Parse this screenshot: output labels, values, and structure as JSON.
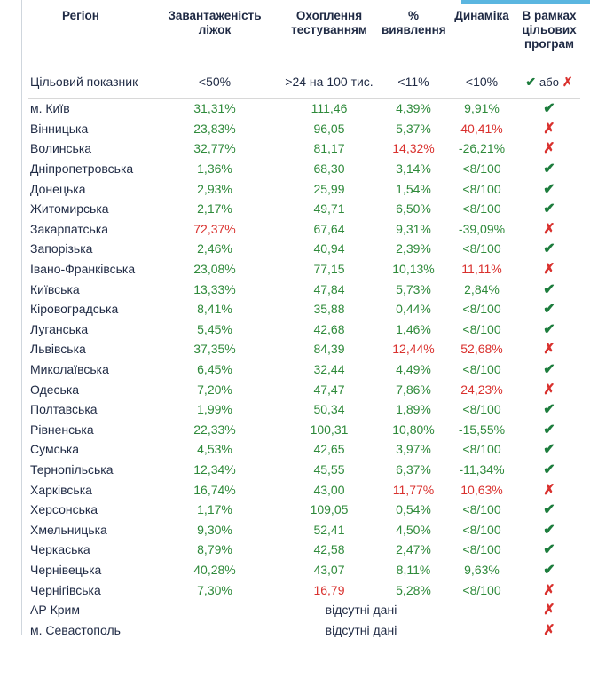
{
  "headers": [
    "Регіон",
    "Завантаженість ліжок",
    "Охоплення тестуванням",
    "% виявлення",
    "Динаміка",
    "В рамках цільових програм"
  ],
  "target": {
    "label": "Цільовий показник",
    "values": [
      "<50%",
      ">24 на 100 тис.",
      "<11%",
      "<10%"
    ],
    "status_or": "або"
  },
  "colors": {
    "green": "#2e8a3a",
    "red": "#d9312e",
    "dark": "#1f2a44"
  },
  "rows": [
    {
      "region": "м. Київ",
      "cells": [
        {
          "t": "31,31%",
          "c": "green"
        },
        {
          "t": "111,46",
          "c": "green"
        },
        {
          "t": "4,39%",
          "c": "green"
        },
        {
          "t": "9,91%",
          "c": "green"
        }
      ],
      "status": "check"
    },
    {
      "region": "Вінницька",
      "cells": [
        {
          "t": "23,83%",
          "c": "green"
        },
        {
          "t": "96,05",
          "c": "green"
        },
        {
          "t": "5,37%",
          "c": "green"
        },
        {
          "t": "40,41%",
          "c": "red"
        }
      ],
      "status": "cross"
    },
    {
      "region": "Волинська",
      "cells": [
        {
          "t": "32,77%",
          "c": "green"
        },
        {
          "t": "81,17",
          "c": "green"
        },
        {
          "t": "14,32%",
          "c": "red"
        },
        {
          "t": "-26,21%",
          "c": "green"
        }
      ],
      "status": "cross"
    },
    {
      "region": "Дніпропетровська",
      "cells": [
        {
          "t": "1,36%",
          "c": "green"
        },
        {
          "t": "68,30",
          "c": "green"
        },
        {
          "t": "3,14%",
          "c": "green"
        },
        {
          "t": "<8/100",
          "c": "green"
        }
      ],
      "status": "check"
    },
    {
      "region": "Донецька",
      "cells": [
        {
          "t": "2,93%",
          "c": "green"
        },
        {
          "t": "25,99",
          "c": "green"
        },
        {
          "t": "1,54%",
          "c": "green"
        },
        {
          "t": "<8/100",
          "c": "green"
        }
      ],
      "status": "check"
    },
    {
      "region": "Житомирська",
      "cells": [
        {
          "t": "2,17%",
          "c": "green"
        },
        {
          "t": "49,71",
          "c": "green"
        },
        {
          "t": "6,50%",
          "c": "green"
        },
        {
          "t": "<8/100",
          "c": "green"
        }
      ],
      "status": "check"
    },
    {
      "region": "Закарпатська",
      "cells": [
        {
          "t": "72,37%",
          "c": "red"
        },
        {
          "t": "67,64",
          "c": "green"
        },
        {
          "t": "9,31%",
          "c": "green"
        },
        {
          "t": "-39,09%",
          "c": "green"
        }
      ],
      "status": "cross"
    },
    {
      "region": "Запорізька",
      "cells": [
        {
          "t": "2,46%",
          "c": "green"
        },
        {
          "t": "40,94",
          "c": "green"
        },
        {
          "t": "2,39%",
          "c": "green"
        },
        {
          "t": "<8/100",
          "c": "green"
        }
      ],
      "status": "check"
    },
    {
      "region": "Івано-Франківська",
      "cells": [
        {
          "t": "23,08%",
          "c": "green"
        },
        {
          "t": "77,15",
          "c": "green"
        },
        {
          "t": "10,13%",
          "c": "green"
        },
        {
          "t": "11,11%",
          "c": "red"
        }
      ],
      "status": "cross"
    },
    {
      "region": "Київська",
      "cells": [
        {
          "t": "13,33%",
          "c": "green"
        },
        {
          "t": "47,84",
          "c": "green"
        },
        {
          "t": "5,73%",
          "c": "green"
        },
        {
          "t": "2,84%",
          "c": "green"
        }
      ],
      "status": "check"
    },
    {
      "region": "Кіровоградська",
      "cells": [
        {
          "t": "8,41%",
          "c": "green"
        },
        {
          "t": "35,88",
          "c": "green"
        },
        {
          "t": "0,44%",
          "c": "green"
        },
        {
          "t": "<8/100",
          "c": "green"
        }
      ],
      "status": "check"
    },
    {
      "region": "Луганська",
      "cells": [
        {
          "t": "5,45%",
          "c": "green"
        },
        {
          "t": "42,68",
          "c": "green"
        },
        {
          "t": "1,46%",
          "c": "green"
        },
        {
          "t": "<8/100",
          "c": "green"
        }
      ],
      "status": "check"
    },
    {
      "region": "Львівська",
      "cells": [
        {
          "t": "37,35%",
          "c": "green"
        },
        {
          "t": "84,39",
          "c": "green"
        },
        {
          "t": "12,44%",
          "c": "red"
        },
        {
          "t": "52,68%",
          "c": "red"
        }
      ],
      "status": "cross"
    },
    {
      "region": "Миколаївська",
      "cells": [
        {
          "t": "6,45%",
          "c": "green"
        },
        {
          "t": "32,44",
          "c": "green"
        },
        {
          "t": "4,49%",
          "c": "green"
        },
        {
          "t": "<8/100",
          "c": "green"
        }
      ],
      "status": "check"
    },
    {
      "region": "Одеська",
      "cells": [
        {
          "t": "7,20%",
          "c": "green"
        },
        {
          "t": "47,47",
          "c": "green"
        },
        {
          "t": "7,86%",
          "c": "green"
        },
        {
          "t": "24,23%",
          "c": "red"
        }
      ],
      "status": "cross"
    },
    {
      "region": "Полтавська",
      "cells": [
        {
          "t": "1,99%",
          "c": "green"
        },
        {
          "t": "50,34",
          "c": "green"
        },
        {
          "t": "1,89%",
          "c": "green"
        },
        {
          "t": "<8/100",
          "c": "green"
        }
      ],
      "status": "check"
    },
    {
      "region": "Рівненська",
      "cells": [
        {
          "t": "22,33%",
          "c": "green"
        },
        {
          "t": "100,31",
          "c": "green"
        },
        {
          "t": "10,80%",
          "c": "green"
        },
        {
          "t": "-15,55%",
          "c": "green"
        }
      ],
      "status": "check"
    },
    {
      "region": "Сумська",
      "cells": [
        {
          "t": "4,53%",
          "c": "green"
        },
        {
          "t": "42,65",
          "c": "green"
        },
        {
          "t": "3,97%",
          "c": "green"
        },
        {
          "t": "<8/100",
          "c": "green"
        }
      ],
      "status": "check"
    },
    {
      "region": "Тернопільська",
      "cells": [
        {
          "t": "12,34%",
          "c": "green"
        },
        {
          "t": "45,55",
          "c": "green"
        },
        {
          "t": "6,37%",
          "c": "green"
        },
        {
          "t": "-11,34%",
          "c": "green"
        }
      ],
      "status": "check"
    },
    {
      "region": "Харківська",
      "cells": [
        {
          "t": "16,74%",
          "c": "green"
        },
        {
          "t": "43,00",
          "c": "green"
        },
        {
          "t": "11,77%",
          "c": "red"
        },
        {
          "t": "10,63%",
          "c": "red"
        }
      ],
      "status": "cross"
    },
    {
      "region": "Херсонська",
      "cells": [
        {
          "t": "1,17%",
          "c": "green"
        },
        {
          "t": "109,05",
          "c": "green"
        },
        {
          "t": "0,54%",
          "c": "green"
        },
        {
          "t": "<8/100",
          "c": "green"
        }
      ],
      "status": "check"
    },
    {
      "region": "Хмельницька",
      "cells": [
        {
          "t": "9,30%",
          "c": "green"
        },
        {
          "t": "52,41",
          "c": "green"
        },
        {
          "t": "4,50%",
          "c": "green"
        },
        {
          "t": "<8/100",
          "c": "green"
        }
      ],
      "status": "check"
    },
    {
      "region": "Черкаська",
      "cells": [
        {
          "t": "8,79%",
          "c": "green"
        },
        {
          "t": "42,58",
          "c": "green"
        },
        {
          "t": "2,47%",
          "c": "green"
        },
        {
          "t": "<8/100",
          "c": "green"
        }
      ],
      "status": "check"
    },
    {
      "region": "Чернівецька",
      "cells": [
        {
          "t": "40,28%",
          "c": "green"
        },
        {
          "t": "43,07",
          "c": "green"
        },
        {
          "t": "8,11%",
          "c": "green"
        },
        {
          "t": "9,63%",
          "c": "green"
        }
      ],
      "status": "check"
    },
    {
      "region": "Чернігівська",
      "cells": [
        {
          "t": "7,30%",
          "c": "green"
        },
        {
          "t": "16,79",
          "c": "red"
        },
        {
          "t": "5,28%",
          "c": "green"
        },
        {
          "t": "<8/100",
          "c": "green"
        }
      ],
      "status": "cross"
    },
    {
      "region": "АР Крим",
      "missing": "відсутні дані",
      "status": "cross"
    },
    {
      "region": "м. Севастополь",
      "missing": "відсутні дані",
      "status": "cross"
    }
  ]
}
